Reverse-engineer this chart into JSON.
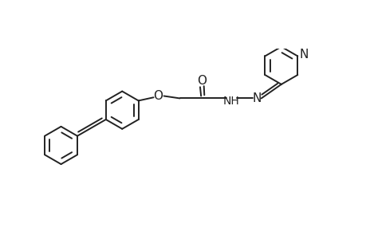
{
  "bg_color": "#ffffff",
  "line_color": "#222222",
  "line_width": 1.4,
  "fig_width": 4.6,
  "fig_height": 3.0,
  "dpi": 100,
  "xlim": [
    -4.5,
    3.2
  ],
  "ylim": [
    -1.5,
    1.5
  ]
}
